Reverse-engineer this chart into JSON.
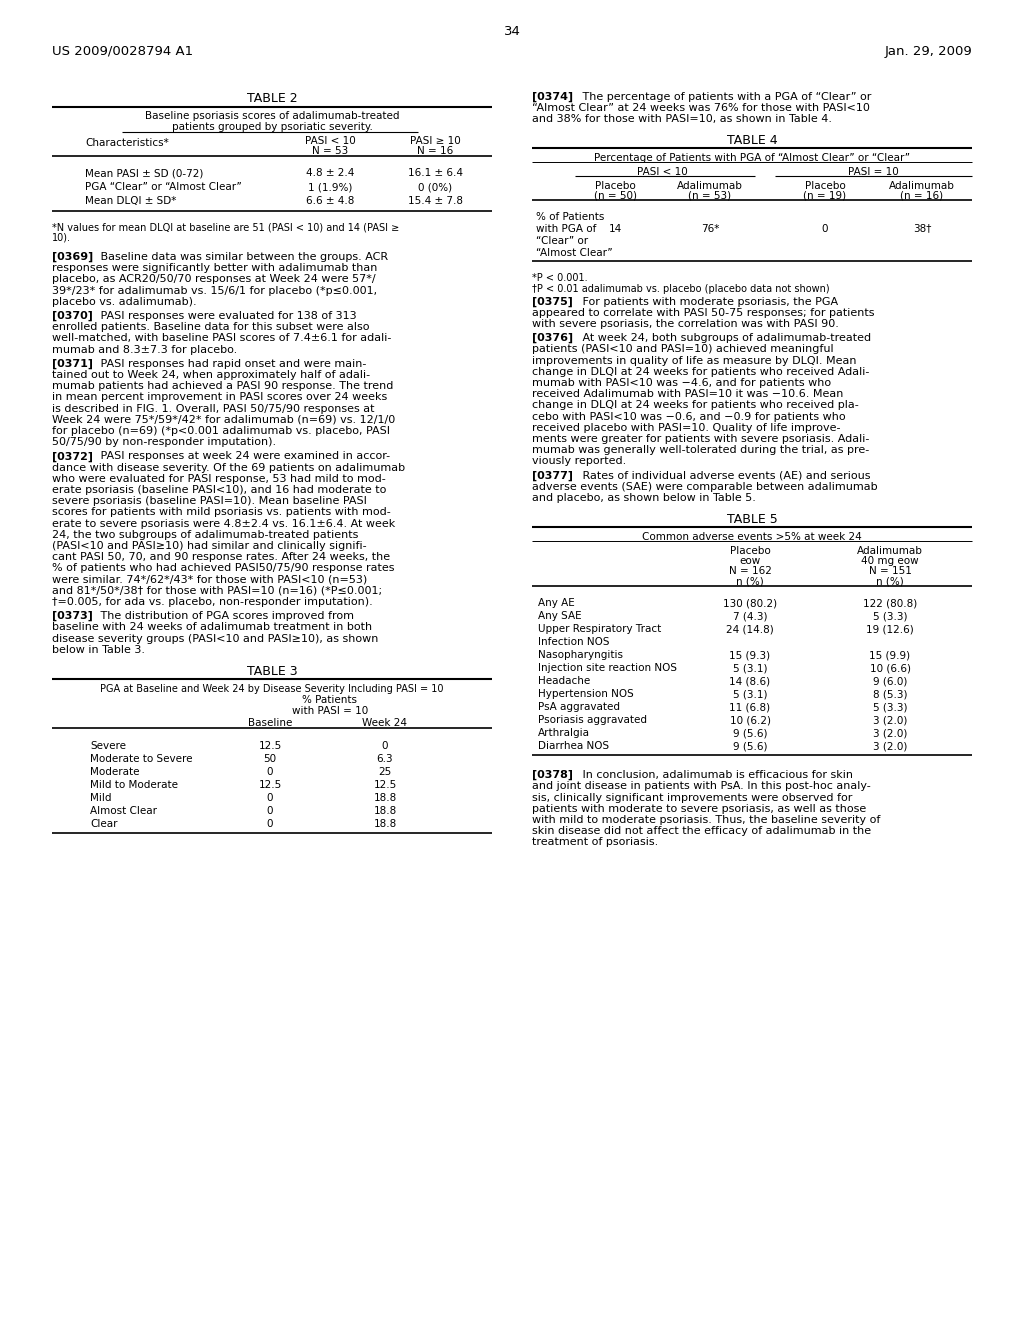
{
  "header_left": "US 2009/0028794 A1",
  "header_right": "Jan. 29, 2009",
  "page_number": "34",
  "background_color": "#ffffff",
  "text_color": "#000000",
  "table2_title": "TABLE 2",
  "table2_subtitle1": "Baseline psoriasis scores of adalimumab-treated",
  "table2_subtitle2": "patients grouped by psoriatic severity.",
  "table2_rows": [
    [
      "Mean PASI ± SD (0-72)",
      "4.8 ± 2.4",
      "16.1 ± 6.4"
    ],
    [
      "PGA “Clear” or “Almost Clear”",
      "1 (1.9%)",
      "0 (0%)"
    ],
    [
      "Mean DLQI ± SD*",
      "6.6 ± 4.8",
      "15.4 ± 7.8"
    ]
  ],
  "table2_footnote1": "*N values for mean DLQI at baseline are 51 (PASI < 10) and 14 (PASI ≥",
  "table2_footnote2": "10).",
  "table3_title": "TABLE 3",
  "table3_subtitle": "PGA at Baseline and Week 24 by Disease Severity Including PASI = 10",
  "table3_rows": [
    [
      "Severe",
      "12.5",
      "0"
    ],
    [
      "Moderate to Severe",
      "50",
      "6.3"
    ],
    [
      "Moderate",
      "0",
      "25"
    ],
    [
      "Mild to Moderate",
      "12.5",
      "12.5"
    ],
    [
      "Mild",
      "0",
      "18.8"
    ],
    [
      "Almost Clear",
      "0",
      "18.8"
    ],
    [
      "Clear",
      "0",
      "18.8"
    ]
  ],
  "table4_title": "TABLE 4",
  "table4_subtitle": "Percentage of Patients with PGA of “Almost Clear” or “Clear”",
  "table4_values": [
    "14",
    "76*",
    "0",
    "38†"
  ],
  "table4_footnote1": "*P < 0.001.",
  "table4_footnote2": "†P < 0.01 adalimumab vs. placebo (placebo data not shown)",
  "table5_title": "TABLE 5",
  "table5_subtitle": "Common adverse events >5% at week 24",
  "table5_rows": [
    [
      "Any AE",
      "130 (80.2)",
      "122 (80.8)"
    ],
    [
      "Any SAE",
      "7 (4.3)",
      "5 (3.3)"
    ],
    [
      "Upper Respiratory Tract",
      "24 (14.8)",
      "19 (12.6)"
    ],
    [
      "Infection NOS",
      "",
      ""
    ],
    [
      "Nasopharyngitis",
      "15 (9.3)",
      "15 (9.9)"
    ],
    [
      "Injection site reaction NOS",
      "5 (3.1)",
      "10 (6.6)"
    ],
    [
      "Headache",
      "14 (8.6)",
      "9 (6.0)"
    ],
    [
      "Hypertension NOS",
      "5 (3.1)",
      "8 (5.3)"
    ],
    [
      "PsA aggravated",
      "11 (6.8)",
      "5 (3.3)"
    ],
    [
      "Psoriasis aggravated",
      "10 (6.2)",
      "3 (2.0)"
    ],
    [
      "Arthralgia",
      "9 (5.6)",
      "3 (2.0)"
    ],
    [
      "Diarrhea NOS",
      "9 (5.6)",
      "3 (2.0)"
    ]
  ],
  "left_paragraphs": [
    {
      "tag": "[0369]",
      "lines": [
        "   Baseline data was similar between the groups. ACR",
        "responses were significantly better with adalimumab than",
        "placebo, as ACR20/50/70 responses at Week 24 were 57*/",
        "39*/23* for adalimumab vs. 15/6/1 for placebo (*p≤0.001,",
        "placebo vs. adalimumab)."
      ]
    },
    {
      "tag": "[0370]",
      "lines": [
        "   PASI responses were evaluated for 138 of 313",
        "enrolled patients. Baseline data for this subset were also",
        "well-matched, with baseline PASI scores of 7.4±6.1 for adali-",
        "mumab and 8.3±7.3 for placebo."
      ]
    },
    {
      "tag": "[0371]",
      "lines": [
        "   PASI responses had rapid onset and were main-",
        "tained out to Week 24, when approximately half of adali-",
        "mumab patients had achieved a PASI 90 response. The trend",
        "in mean percent improvement in PASI scores over 24 weeks",
        "is described in FIG. 1. Overall, PASI 50/75/90 responses at",
        "Week 24 were 75*/59*/42* for adalimumab (n=69) vs. 12/1/0",
        "for placebo (n=69) (*p<0.001 adalimumab vs. placebo, PASI",
        "50/75/90 by non-responder imputation)."
      ]
    },
    {
      "tag": "[0372]",
      "lines": [
        "   PASI responses at week 24 were examined in accor-",
        "dance with disease severity. Of the 69 patients on adalimumab",
        "who were evaluated for PASI response, 53 had mild to mod-",
        "erate psoriasis (baseline PASI<10), and 16 had moderate to",
        "severe psoriasis (baseline PASI=10). Mean baseline PASI",
        "scores for patients with mild psoriasis vs. patients with mod-",
        "erate to severe psoriasis were 4.8±2.4 vs. 16.1±6.4. At week",
        "24, the two subgroups of adalimumab-treated patients",
        "(PASI<10 and PASI≥10) had similar and clinically signifi-",
        "cant PASI 50, 70, and 90 response rates. After 24 weeks, the",
        "% of patients who had achieved PASI50/75/90 response rates",
        "were similar. 74*/62*/43* for those with PASI<10 (n=53)",
        "and 81*/50*/38† for those with PASI=10 (n=16) (*P≤0.001;",
        "†=0.005, for ada vs. placebo, non-responder imputation)."
      ]
    },
    {
      "tag": "[0373]",
      "lines": [
        "   The distribution of PGA scores improved from",
        "baseline with 24 weeks of adalimumab treatment in both",
        "disease severity groups (PASI<10 and PASI≥10), as shown",
        "below in Table 3."
      ]
    }
  ],
  "right_paragraphs_top": [
    {
      "tag": "[0374]",
      "lines": [
        "   The percentage of patients with a PGA of “Clear” or",
        "“Almost Clear” at 24 weeks was 76% for those with PASI<10",
        "and 38% for those with PASI=10, as shown in Table 4."
      ]
    }
  ],
  "right_paragraphs_mid": [
    {
      "tag": "[0375]",
      "lines": [
        "   For patients with moderate psoriasis, the PGA",
        "appeared to correlate with PASI 50-75 responses; for patients",
        "with severe psoriasis, the correlation was with PASI 90."
      ]
    },
    {
      "tag": "[0376]",
      "lines": [
        "   At week 24, both subgroups of adalimumab-treated",
        "patients (PASI<10 and PASI=10) achieved meaningful",
        "improvements in quality of life as measure by DLQI. Mean",
        "change in DLQI at 24 weeks for patients who received Adali-",
        "mumab with PASI<10 was −4.6, and for patients who",
        "received Adalimumab with PASI=10 it was −10.6. Mean",
        "change in DLQI at 24 weeks for patients who received pla-",
        "cebo with PASI<10 was −0.6, and −0.9 for patients who",
        "received placebo with PASI=10. Quality of life improve-",
        "ments were greater for patients with severe psoriasis. Adali-",
        "mumab was generally well-tolerated during the trial, as pre-",
        "viously reported."
      ]
    },
    {
      "tag": "[0377]",
      "lines": [
        "   Rates of individual adverse events (AE) and serious",
        "adverse events (SAE) were comparable between adalimumab",
        "and placebo, as shown below in Table 5."
      ]
    }
  ],
  "right_paragraphs_bot": [
    {
      "tag": "[0378]",
      "lines": [
        "   In conclusion, adalimumab is efficacious for skin",
        "and joint disease in patients with PsA. In this post-hoc analy-",
        "sis, clinically significant improvements were observed for",
        "patients with moderate to severe psoriasis, as well as those",
        "with mild to moderate psoriasis. Thus, the baseline severity of",
        "skin disease did not affect the efficacy of adalimumab in the",
        "treatment of psoriasis."
      ]
    }
  ]
}
